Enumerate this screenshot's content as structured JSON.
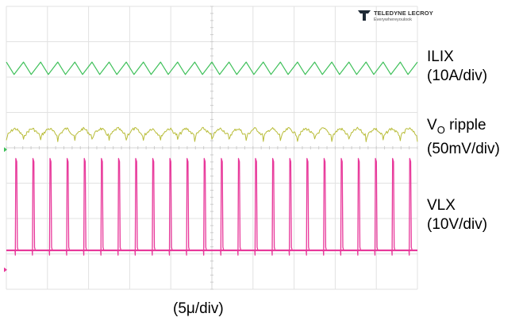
{
  "chart_data": {
    "type": "line",
    "title": "",
    "xlabel": "(5μ/div)",
    "horizontal_divisions": 10,
    "vertical_divisions": 8,
    "grid": true,
    "series": [
      {
        "name": "ILIX",
        "scale": "(10A/div)",
        "color": "#3fc05a",
        "waveform": "sawtooth",
        "cycles": 24,
        "baseline_div": 1.75,
        "peak_to_peak_div": 0.35
      },
      {
        "name": "VO ripple",
        "scale": "(50mV/div)",
        "color": "#b9bd3a",
        "waveform": "ripple",
        "cycles": 24,
        "baseline_div": 3.55,
        "peak_to_peak_div": 0.25
      },
      {
        "name": "VLX",
        "scale": "(10V/div)",
        "color": "#e8389a",
        "waveform": "pulse",
        "cycles": 24,
        "baseline_div": 6.9,
        "pulse_height_div": 2.6
      }
    ]
  },
  "labels": {
    "ilix_name": "ILIX",
    "ilix_scale": "(10A/div)",
    "vo_prefix": "V",
    "vo_sub": "O",
    "vo_suffix": " ripple",
    "vo_scale": "(50mV/div)",
    "vlx_name": "VLX",
    "vlx_scale": "(10V/div)",
    "timebase": "(5μ/div)"
  },
  "logo": {
    "name": "TELEDYNE LECROY",
    "tagline": "Everywhereyoulook"
  },
  "colors": {
    "grid": "#e2e2e2",
    "ilix": "#3fc05a",
    "vo": "#b9bd3a",
    "vlx": "#e8389a",
    "logo": "#1f2a36"
  }
}
